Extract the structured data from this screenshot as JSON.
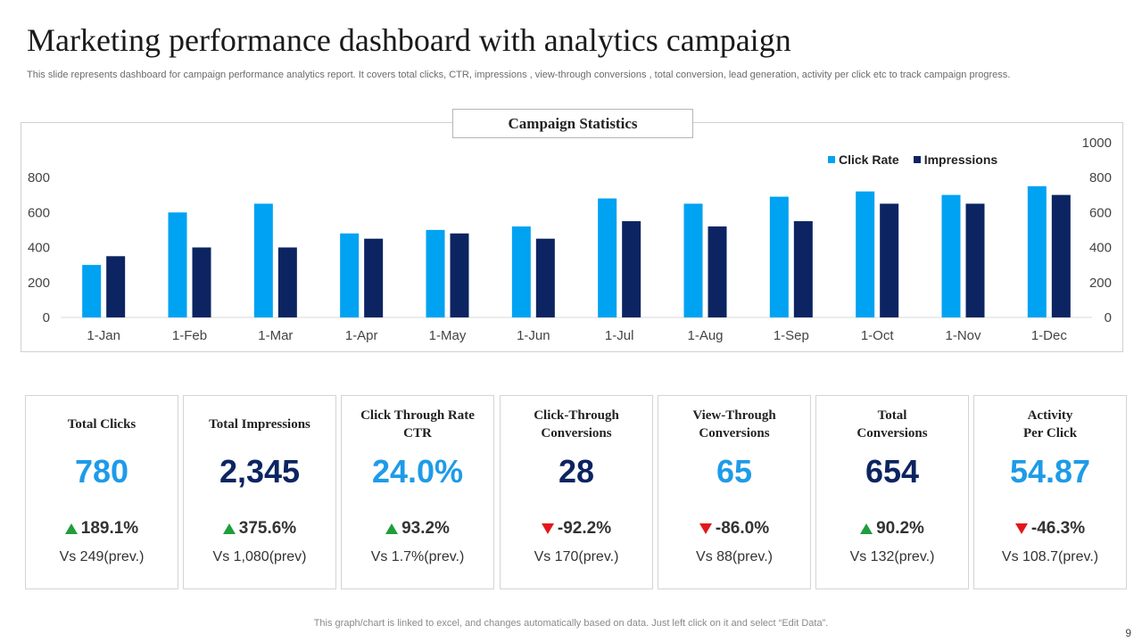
{
  "title": "Marketing performance dashboard with analytics campaign",
  "subtitle": "This slide represents dashboard for campaign performance analytics report. It covers total clicks, CTR, impressions , view-through conversions , total conversion, lead generation, activity per click etc to track campaign progress.",
  "chart_data": {
    "type": "bar",
    "title": "Campaign Statistics",
    "categories": [
      "1-Jan",
      "1-Feb",
      "1-Mar",
      "1-Apr",
      "1-May",
      "1-Jun",
      "1-Jul",
      "1-Aug",
      "1-Sep",
      "1-Oct",
      "1-Nov",
      "1-Dec"
    ],
    "series": [
      {
        "name": "Click Rate",
        "color": "#00a2f2",
        "axis": "left",
        "values": [
          300,
          600,
          650,
          480,
          500,
          520,
          680,
          650,
          690,
          720,
          700,
          750
        ]
      },
      {
        "name": "Impressions",
        "color": "#0c2461",
        "axis": "right",
        "values": [
          350,
          400,
          400,
          450,
          480,
          450,
          550,
          520,
          550,
          650,
          650,
          700
        ]
      }
    ],
    "y_left": {
      "min": 0,
      "max": 800,
      "ticks": [
        0,
        200,
        400,
        600,
        800
      ]
    },
    "y_right": {
      "min": 0,
      "max": 1000,
      "ticks": [
        0,
        200,
        400,
        600,
        800,
        1000
      ]
    },
    "legend_position": "top-right",
    "grid": false
  },
  "cards": [
    {
      "label": "Total Clicks",
      "value": "780",
      "value_color": "#1e9be8",
      "direction": "up",
      "change": "189.1%",
      "prev": "Vs 249(prev.)"
    },
    {
      "label": "Total Impressions",
      "value": "2,345",
      "value_color": "#0c2461",
      "direction": "up",
      "change": "375.6%",
      "prev": "Vs 1,080(prev)"
    },
    {
      "label": "Click Through  Rate\nCTR",
      "value": "24.0%",
      "value_color": "#1e9be8",
      "direction": "up",
      "change": "93.2%",
      "prev": "Vs 1.7%(prev.)"
    },
    {
      "label": "Click-Through\nConversions",
      "value": "28",
      "value_color": "#0c2461",
      "direction": "down",
      "change": "-92.2%",
      "prev": "Vs 170(prev.)"
    },
    {
      "label": "View-Through\nConversions",
      "value": "65",
      "value_color": "#1e9be8",
      "direction": "down",
      "change": "-86.0%",
      "prev": "Vs 88(prev.)"
    },
    {
      "label": "Total\nConversions",
      "value": "654",
      "value_color": "#0c2461",
      "direction": "up",
      "change": "90.2%",
      "prev": "Vs 132(prev.)"
    },
    {
      "label": "Activity\nPer Click",
      "value": "54.87",
      "value_color": "#1e9be8",
      "direction": "down",
      "change": "-46.3%",
      "prev": "Vs 108.7(prev.)"
    }
  ],
  "footer": "This graph/chart is linked to excel,  and changes automatically based on data. Just left click on it and select “Edit Data”.",
  "page_number": "9"
}
